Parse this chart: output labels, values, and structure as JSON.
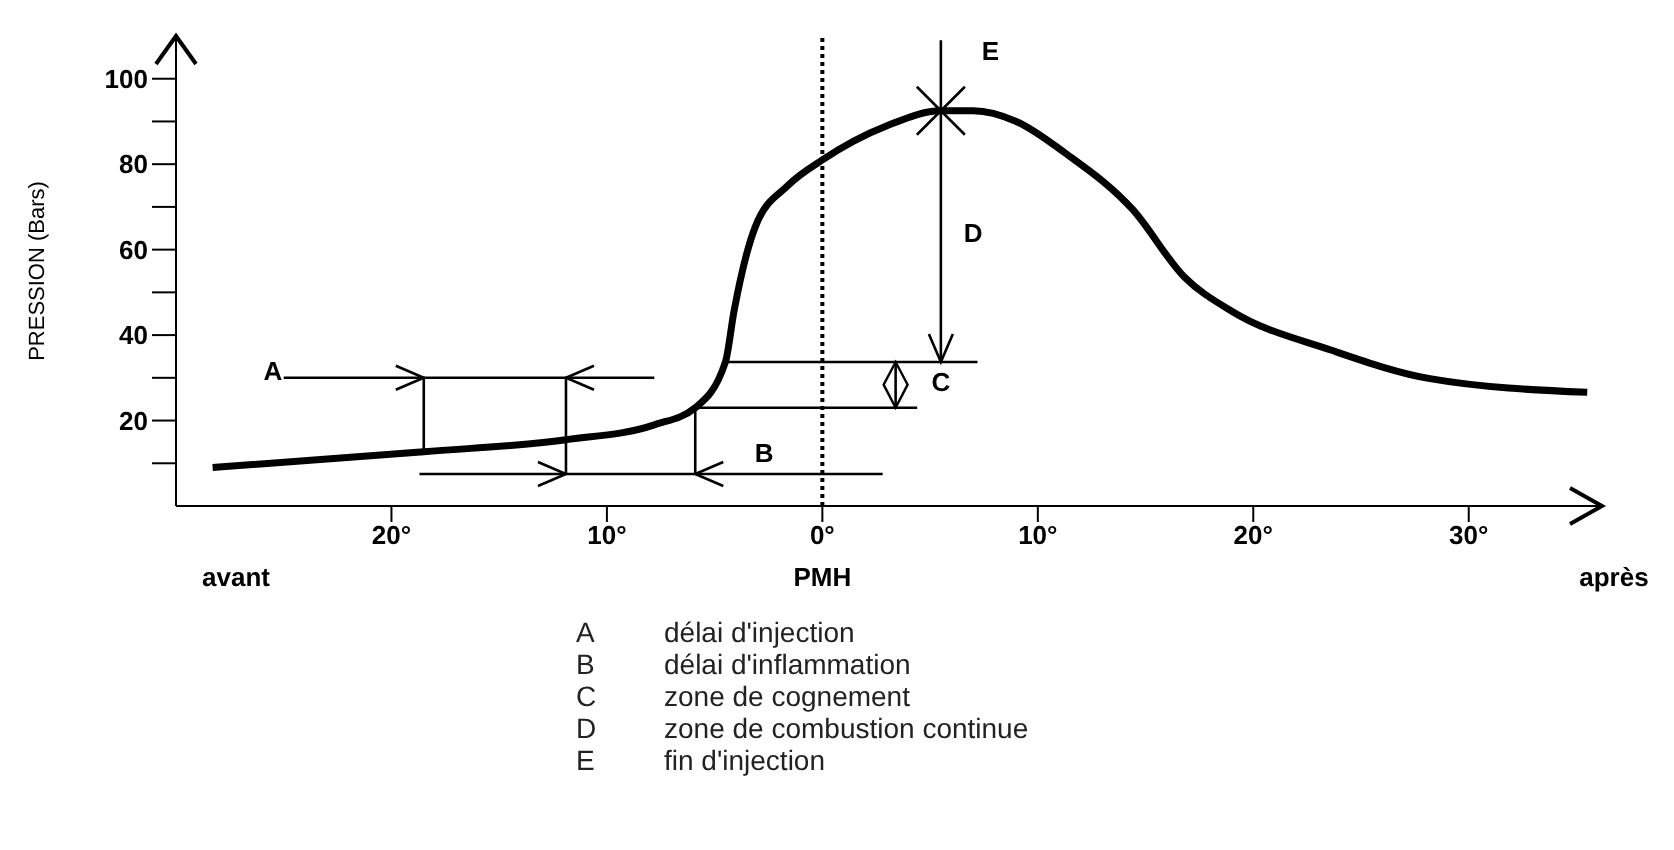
{
  "chart_data": {
    "type": "line",
    "ylabel": "PRESSION (Bars)",
    "x": [
      -28.3,
      -18.5,
      -11.9,
      -7.8,
      -5.9,
      -4.5,
      -4.1,
      -3.1,
      -1.6,
      0,
      3,
      5.5,
      7,
      9,
      11.3,
      14.4,
      16.8,
      19,
      23.6,
      28.2,
      35.5
    ],
    "series": [
      {
        "color": "#000000",
        "values": [
          9,
          12.7,
          15.5,
          19,
          23,
          33.7,
          45.6,
          65.5,
          75,
          81,
          89,
          92.5,
          92.5,
          90,
          82.5,
          69.4,
          53.6,
          45.6,
          36.5,
          29.8,
          26.6
        ]
      }
    ],
    "xlim": [
      -30,
      36
    ],
    "ylim": [
      0,
      110
    ],
    "xticks": [
      {
        "value": -20,
        "label": "20°"
      },
      {
        "value": -10,
        "label": "10°"
      },
      {
        "value": 0,
        "label": "0°"
      },
      {
        "value": 10,
        "label": "10°"
      },
      {
        "value": 20,
        "label": "20°"
      },
      {
        "value": 30,
        "label": "30°"
      }
    ],
    "yticks": [
      {
        "value": 10,
        "label": null
      },
      20,
      {
        "value": 30,
        "label": null
      },
      40,
      {
        "value": 50,
        "label": null
      },
      60,
      {
        "value": 70,
        "label": null
      },
      80,
      {
        "value": 90,
        "label": null
      },
      100
    ],
    "ref_lines": [
      {
        "axis": "x",
        "value": 0,
        "label": "PMH",
        "line_style": "dotted",
        "color": "#000000"
      }
    ],
    "annotations": [
      "A",
      "B",
      {
        "text": "C",
        "x": -4.5,
        "y": 33.7
      },
      "D",
      "E",
      "avant",
      "après",
      "A délai d'injection",
      "B délai d'inflammation",
      "C zone de cognement",
      "D zone de combustion continue",
      "E fin d'injection"
    ],
    "grid": false,
    "legend": false,
    "marker": "none",
    "line_style": "solid"
  }
}
